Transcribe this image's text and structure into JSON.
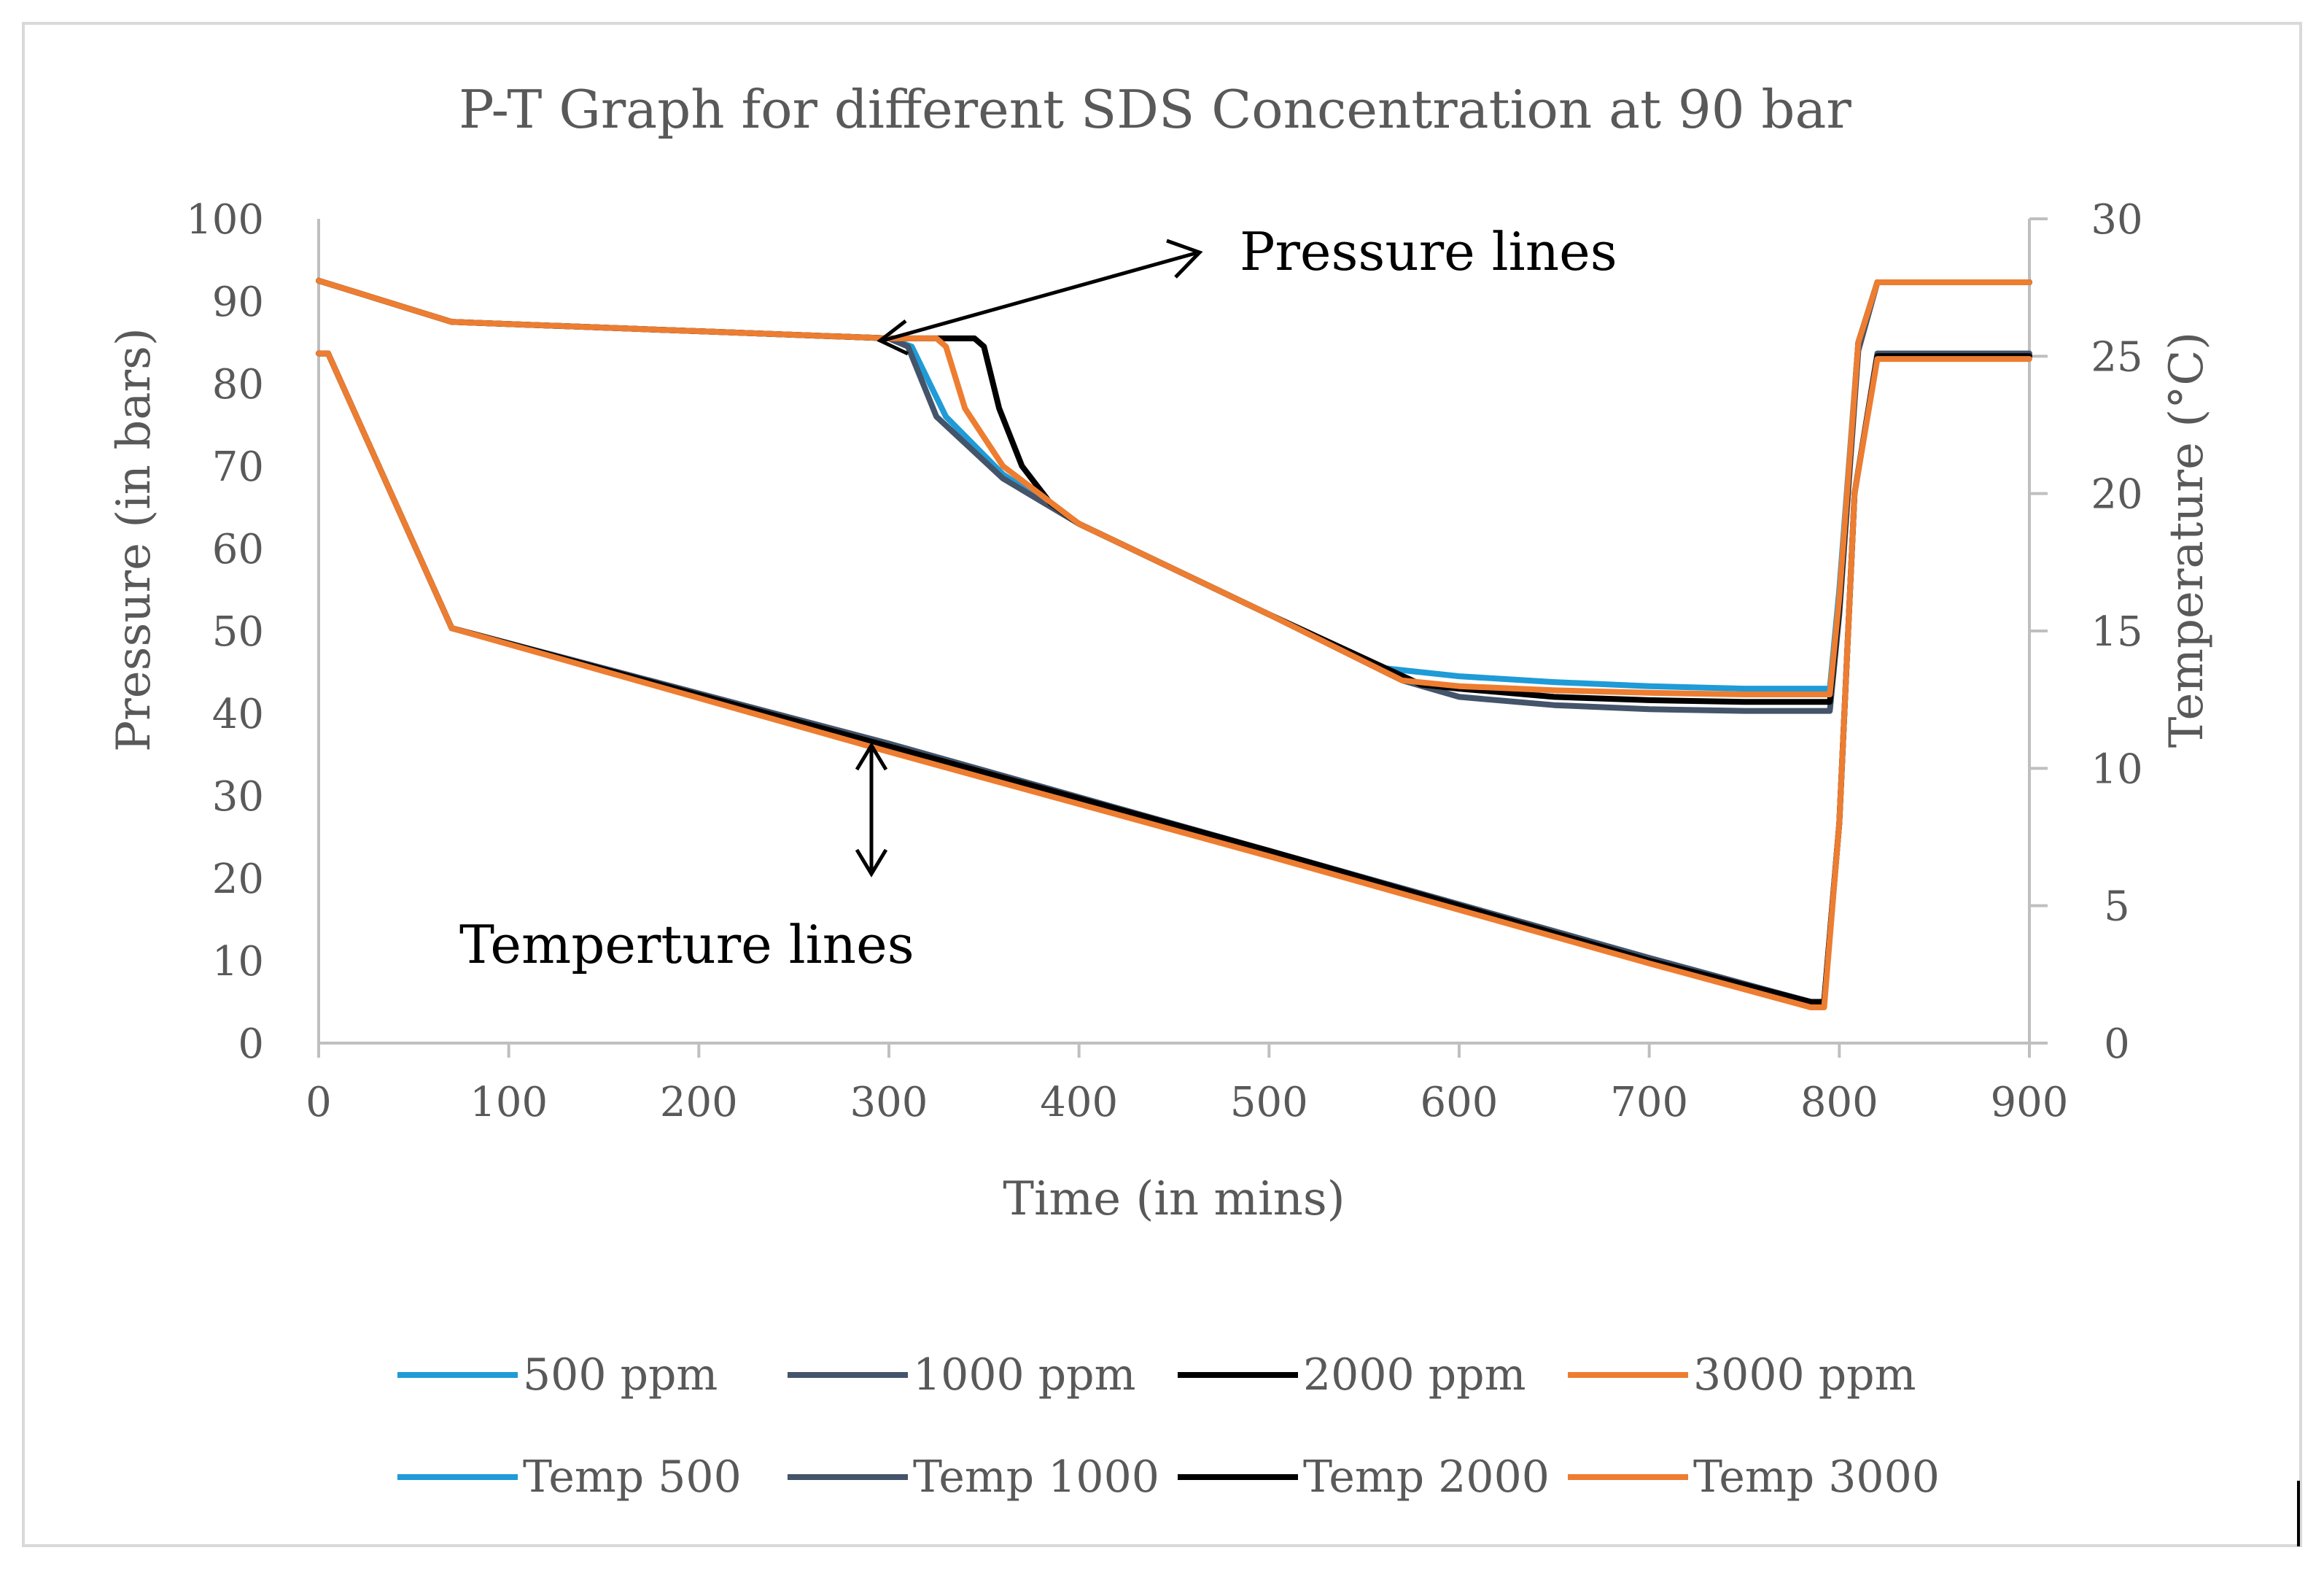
{
  "chart_data": {
    "type": "line",
    "title": "P-T Graph for different SDS Concentration  at 90 bar",
    "xlabel": "Time (in mins)",
    "ylabel": "Pressure (in bars)",
    "y2label": "Temperature (°C)",
    "xlim": [
      0,
      900
    ],
    "ylim": [
      0,
      100
    ],
    "y2lim": [
      0,
      30
    ],
    "xticks": [
      "0",
      "100",
      "200",
      "300",
      "400",
      "500",
      "600",
      "700",
      "800",
      "900"
    ],
    "yticks": [
      "0",
      "10",
      "20",
      "30",
      "40",
      "50",
      "60",
      "70",
      "80",
      "90",
      "100"
    ],
    "y2ticks": [
      "0",
      "5",
      "10",
      "15",
      "20",
      "25",
      "30"
    ],
    "grid": false,
    "legend_position": "bottom",
    "series": [
      {
        "name": "500 ppm",
        "axis": "left",
        "color": "#1f9bd7",
        "x": [
          0,
          70,
          300,
          312,
          330,
          360,
          400,
          500,
          560,
          600,
          650,
          700,
          750,
          795,
          800,
          810,
          820,
          900
        ],
        "y": [
          92.5,
          87.5,
          85.5,
          84.5,
          76,
          69,
          63,
          52,
          45.5,
          44.5,
          43.8,
          43.3,
          43,
          43,
          55,
          85,
          92.3,
          92.3
        ]
      },
      {
        "name": "1000 ppm",
        "axis": "left",
        "color": "#44546a",
        "x": [
          0,
          70,
          300,
          310,
          325,
          360,
          400,
          500,
          570,
          600,
          650,
          700,
          750,
          795,
          800,
          810,
          820,
          900
        ],
        "y": [
          92.5,
          87.5,
          85.5,
          84.5,
          76,
          68.5,
          63,
          52,
          44,
          42,
          41,
          40.5,
          40.3,
          40.3,
          52,
          84,
          92.3,
          92.3
        ]
      },
      {
        "name": "2000 ppm",
        "axis": "left",
        "color": "#000000",
        "x": [
          0,
          70,
          300,
          345,
          350,
          358,
          370,
          385,
          400,
          500,
          580,
          600,
          650,
          700,
          750,
          795,
          800,
          810,
          820,
          900
        ],
        "y": [
          92.5,
          87.5,
          85.5,
          85.5,
          84.5,
          77,
          70,
          65.5,
          63,
          52,
          43.5,
          43,
          42,
          41.6,
          41.4,
          41.4,
          53,
          85,
          92.3,
          92.3
        ]
      },
      {
        "name": "3000 ppm",
        "axis": "left",
        "color": "#ed7d31",
        "x": [
          0,
          70,
          300,
          325,
          330,
          340,
          360,
          400,
          500,
          570,
          600,
          650,
          700,
          750,
          795,
          800,
          810,
          820,
          900
        ],
        "y": [
          92.5,
          87.5,
          85.5,
          85.5,
          84.5,
          77,
          70,
          63,
          52,
          44,
          43.3,
          42.8,
          42.5,
          42.3,
          42.3,
          54,
          85,
          92.3,
          92.3
        ]
      },
      {
        "name": "Temp 500",
        "axis": "right",
        "color": "#1f9bd7",
        "x": [
          0,
          5,
          70,
          300,
          500,
          700,
          785,
          792,
          800,
          808,
          820,
          900
        ],
        "y": [
          25.1,
          25.1,
          15.1,
          10.7,
          6.9,
          3.0,
          1.5,
          1.5,
          8,
          20,
          25,
          25
        ]
      },
      {
        "name": "Temp 1000",
        "axis": "right",
        "color": "#44546a",
        "x": [
          0,
          5,
          70,
          300,
          500,
          700,
          785,
          792,
          800,
          808,
          820,
          900
        ],
        "y": [
          25.1,
          25.1,
          15.1,
          10.9,
          7.0,
          3.1,
          1.5,
          1.5,
          8,
          20,
          25.1,
          25.1
        ]
      },
      {
        "name": "Temp 2000",
        "axis": "right",
        "color": "#000000",
        "x": [
          0,
          5,
          70,
          300,
          500,
          700,
          785,
          792,
          800,
          808,
          820,
          900
        ],
        "y": [
          25.1,
          25.1,
          15.1,
          10.8,
          7.0,
          3.0,
          1.5,
          1.5,
          8,
          20,
          25,
          25
        ]
      },
      {
        "name": "Temp 3000",
        "axis": "right",
        "color": "#ed7d31",
        "x": [
          0,
          5,
          70,
          300,
          500,
          700,
          785,
          792,
          800,
          808,
          820,
          900
        ],
        "y": [
          25.1,
          25.1,
          15.1,
          10.6,
          6.8,
          2.9,
          1.3,
          1.3,
          8,
          20,
          24.9,
          24.9
        ]
      }
    ],
    "annotations": [
      {
        "label": "Pressure lines"
      },
      {
        "label": "Temperture lines"
      }
    ]
  }
}
